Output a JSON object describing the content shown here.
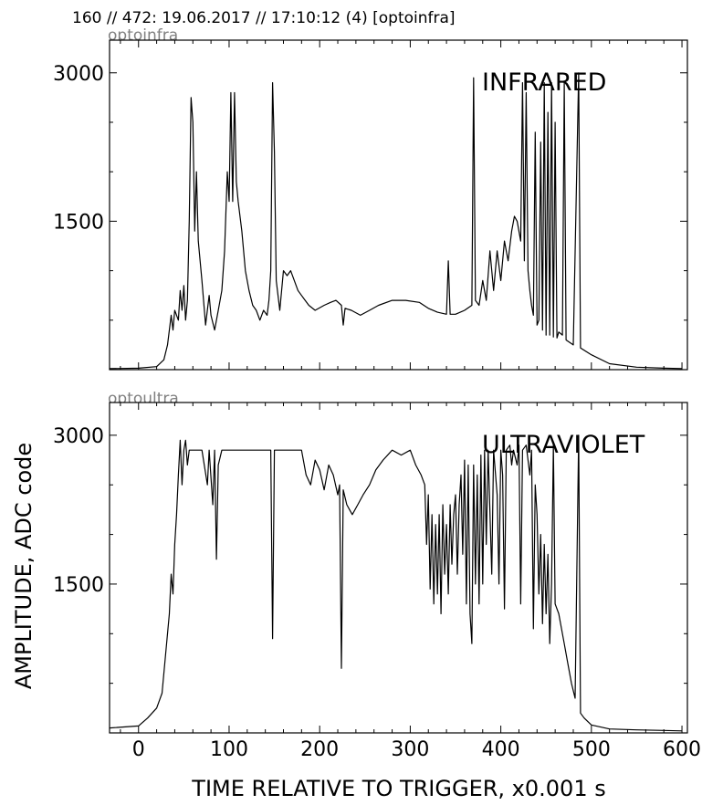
{
  "header": "160 // 472:   19.06.2017 // 17:10:12 (4)  [optoinfra]",
  "xlabel": "TIME RELATIVE TO TRIGGER,   x0.001 s",
  "ylabel": "AMPLITUDE,  ADC code",
  "chart_data": [
    {
      "type": "line",
      "subtitle": "optoinfra",
      "annotation": "INFRARED",
      "xlim": [
        -32,
        606
      ],
      "ylim": [
        0,
        3330
      ],
      "xticks": [
        0,
        100,
        200,
        300,
        400,
        500,
        600
      ],
      "yticks": [
        1500,
        3000
      ],
      "ytick_labels": [
        "1500",
        "3000"
      ],
      "series": [
        {
          "points": [
            [
              -32,
              10
            ],
            [
              0,
              15
            ],
            [
              20,
              30
            ],
            [
              28,
              100
            ],
            [
              32,
              250
            ],
            [
              36,
              550
            ],
            [
              38,
              400
            ],
            [
              40,
              600
            ],
            [
              44,
              500
            ],
            [
              46,
              800
            ],
            [
              48,
              600
            ],
            [
              50,
              850
            ],
            [
              52,
              500
            ],
            [
              54,
              700
            ],
            [
              56,
              1500
            ],
            [
              58,
              2750
            ],
            [
              60,
              2500
            ],
            [
              62,
              1400
            ],
            [
              64,
              2000
            ],
            [
              66,
              1300
            ],
            [
              70,
              900
            ],
            [
              74,
              450
            ],
            [
              78,
              750
            ],
            [
              80,
              550
            ],
            [
              84,
              400
            ],
            [
              88,
              600
            ],
            [
              92,
              800
            ],
            [
              95,
              1200
            ],
            [
              98,
              2000
            ],
            [
              100,
              1700
            ],
            [
              102,
              2800
            ],
            [
              104,
              1700
            ],
            [
              106,
              2800
            ],
            [
              108,
              1900
            ],
            [
              110,
              1700
            ],
            [
              114,
              1400
            ],
            [
              118,
              1000
            ],
            [
              122,
              800
            ],
            [
              126,
              650
            ],
            [
              130,
              600
            ],
            [
              134,
              500
            ],
            [
              138,
              600
            ],
            [
              142,
              550
            ],
            [
              144,
              700
            ],
            [
              146,
              1000
            ],
            [
              148,
              2900
            ],
            [
              150,
              2200
            ],
            [
              152,
              900
            ],
            [
              156,
              600
            ],
            [
              160,
              1000
            ],
            [
              164,
              950
            ],
            [
              168,
              1000
            ],
            [
              172,
              900
            ],
            [
              176,
              800
            ],
            [
              180,
              750
            ],
            [
              184,
              700
            ],
            [
              188,
              650
            ],
            [
              195,
              600
            ],
            [
              205,
              650
            ],
            [
              212,
              680
            ],
            [
              218,
              700
            ],
            [
              224,
              650
            ],
            [
              226,
              450
            ],
            [
              228,
              620
            ],
            [
              235,
              600
            ],
            [
              245,
              550
            ],
            [
              255,
              600
            ],
            [
              265,
              650
            ],
            [
              280,
              700
            ],
            [
              295,
              700
            ],
            [
              310,
              680
            ],
            [
              320,
              620
            ],
            [
              330,
              580
            ],
            [
              340,
              560
            ],
            [
              342,
              1100
            ],
            [
              344,
              560
            ],
            [
              350,
              560
            ],
            [
              360,
              600
            ],
            [
              368,
              650
            ],
            [
              370,
              2950
            ],
            [
              372,
              700
            ],
            [
              376,
              650
            ],
            [
              380,
              900
            ],
            [
              384,
              700
            ],
            [
              388,
              1200
            ],
            [
              392,
              800
            ],
            [
              396,
              1200
            ],
            [
              400,
              900
            ],
            [
              404,
              1300
            ],
            [
              408,
              1100
            ],
            [
              412,
              1400
            ],
            [
              415,
              1550
            ],
            [
              418,
              1500
            ],
            [
              422,
              1300
            ],
            [
              424,
              2900
            ],
            [
              426,
              1100
            ],
            [
              428,
              2800
            ],
            [
              430,
              1000
            ],
            [
              432,
              800
            ],
            [
              434,
              650
            ],
            [
              436,
              550
            ],
            [
              438,
              2400
            ],
            [
              440,
              450
            ],
            [
              442,
              500
            ],
            [
              444,
              2300
            ],
            [
              446,
              400
            ],
            [
              448,
              2900
            ],
            [
              450,
              350
            ],
            [
              452,
              2600
            ],
            [
              454,
              350
            ],
            [
              456,
              2900
            ],
            [
              458,
              330
            ],
            [
              460,
              2500
            ],
            [
              462,
              320
            ],
            [
              464,
              380
            ],
            [
              468,
              350
            ],
            [
              470,
              2900
            ],
            [
              472,
              300
            ],
            [
              480,
              250
            ],
            [
              486,
              3000
            ],
            [
              488,
              220
            ],
            [
              500,
              150
            ],
            [
              520,
              60
            ],
            [
              550,
              25
            ],
            [
              580,
              15
            ],
            [
              600,
              10
            ]
          ]
        }
      ]
    },
    {
      "type": "line",
      "subtitle": "optoultra",
      "annotation": "ULTRAVIOLET",
      "xlim": [
        -32,
        606
      ],
      "ylim": [
        0,
        3330
      ],
      "xticks": [
        0,
        100,
        200,
        300,
        400,
        500,
        600
      ],
      "yticks": [
        1500,
        3000
      ],
      "ytick_labels": [
        "1500",
        "3000"
      ],
      "series": [
        {
          "points": [
            [
              -32,
              50
            ],
            [
              0,
              70
            ],
            [
              10,
              150
            ],
            [
              20,
              250
            ],
            [
              26,
              400
            ],
            [
              30,
              800
            ],
            [
              34,
              1200
            ],
            [
              36,
              1600
            ],
            [
              38,
              1400
            ],
            [
              40,
              1900
            ],
            [
              42,
              2200
            ],
            [
              44,
              2600
            ],
            [
              46,
              2950
            ],
            [
              48,
              2500
            ],
            [
              50,
              2850
            ],
            [
              52,
              2950
            ],
            [
              54,
              2700
            ],
            [
              56,
              2850
            ],
            [
              60,
              2850
            ],
            [
              70,
              2850
            ],
            [
              76,
              2500
            ],
            [
              78,
              2850
            ],
            [
              82,
              2300
            ],
            [
              84,
              2850
            ],
            [
              86,
              1750
            ],
            [
              88,
              2700
            ],
            [
              92,
              2850
            ],
            [
              110,
              2850
            ],
            [
              125,
              2850
            ],
            [
              140,
              2850
            ],
            [
              146,
              2850
            ],
            [
              148,
              950
            ],
            [
              150,
              2850
            ],
            [
              170,
              2850
            ],
            [
              180,
              2850
            ],
            [
              185,
              2600
            ],
            [
              190,
              2500
            ],
            [
              195,
              2750
            ],
            [
              200,
              2650
            ],
            [
              205,
              2450
            ],
            [
              210,
              2700
            ],
            [
              215,
              2600
            ],
            [
              220,
              2400
            ],
            [
              222,
              2500
            ],
            [
              224,
              650
            ],
            [
              226,
              2450
            ],
            [
              230,
              2300
            ],
            [
              236,
              2200
            ],
            [
              242,
              2300
            ],
            [
              248,
              2400
            ],
            [
              255,
              2500
            ],
            [
              262,
              2650
            ],
            [
              270,
              2750
            ],
            [
              280,
              2850
            ],
            [
              290,
              2800
            ],
            [
              300,
              2850
            ],
            [
              306,
              2700
            ],
            [
              312,
              2600
            ],
            [
              316,
              2500
            ],
            [
              318,
              1900
            ],
            [
              320,
              2400
            ],
            [
              322,
              1450
            ],
            [
              324,
              2200
            ],
            [
              326,
              1300
            ],
            [
              328,
              2100
            ],
            [
              330,
              1400
            ],
            [
              332,
              2200
            ],
            [
              334,
              1200
            ],
            [
              336,
              2300
            ],
            [
              338,
              1600
            ],
            [
              340,
              2100
            ],
            [
              342,
              1400
            ],
            [
              344,
              2300
            ],
            [
              346,
              1700
            ],
            [
              348,
              2200
            ],
            [
              350,
              2400
            ],
            [
              352,
              1600
            ],
            [
              354,
              2300
            ],
            [
              356,
              2600
            ],
            [
              358,
              1800
            ],
            [
              360,
              2750
            ],
            [
              362,
              1300
            ],
            [
              364,
              2700
            ],
            [
              366,
              1200
            ],
            [
              368,
              900
            ],
            [
              370,
              2700
            ],
            [
              372,
              1500
            ],
            [
              374,
              2600
            ],
            [
              376,
              1300
            ],
            [
              378,
              2800
            ],
            [
              380,
              1500
            ],
            [
              382,
              2850
            ],
            [
              384,
              1900
            ],
            [
              386,
              2850
            ],
            [
              390,
              1600
            ],
            [
              392,
              2850
            ],
            [
              396,
              2400
            ],
            [
              398,
              1500
            ],
            [
              400,
              2850
            ],
            [
              402,
              2600
            ],
            [
              404,
              1250
            ],
            [
              406,
              2850
            ],
            [
              410,
              2900
            ],
            [
              412,
              2700
            ],
            [
              414,
              2850
            ],
            [
              418,
              2700
            ],
            [
              420,
              2900
            ],
            [
              422,
              1300
            ],
            [
              424,
              2850
            ],
            [
              428,
              2900
            ],
            [
              432,
              2600
            ],
            [
              434,
              2850
            ],
            [
              436,
              1050
            ],
            [
              438,
              2500
            ],
            [
              440,
              2200
            ],
            [
              442,
              1400
            ],
            [
              444,
              2000
            ],
            [
              446,
              1100
            ],
            [
              448,
              1900
            ],
            [
              450,
              1200
            ],
            [
              452,
              1800
            ],
            [
              454,
              900
            ],
            [
              456,
              1500
            ],
            [
              458,
              2900
            ],
            [
              460,
              1300
            ],
            [
              464,
              1200
            ],
            [
              468,
              1000
            ],
            [
              470,
              900
            ],
            [
              474,
              700
            ],
            [
              478,
              500
            ],
            [
              482,
              350
            ],
            [
              486,
              3000
            ],
            [
              488,
              200
            ],
            [
              492,
              150
            ],
            [
              500,
              80
            ],
            [
              520,
              40
            ],
            [
              550,
              30
            ],
            [
              580,
              25
            ],
            [
              600,
              20
            ]
          ]
        }
      ]
    }
  ]
}
